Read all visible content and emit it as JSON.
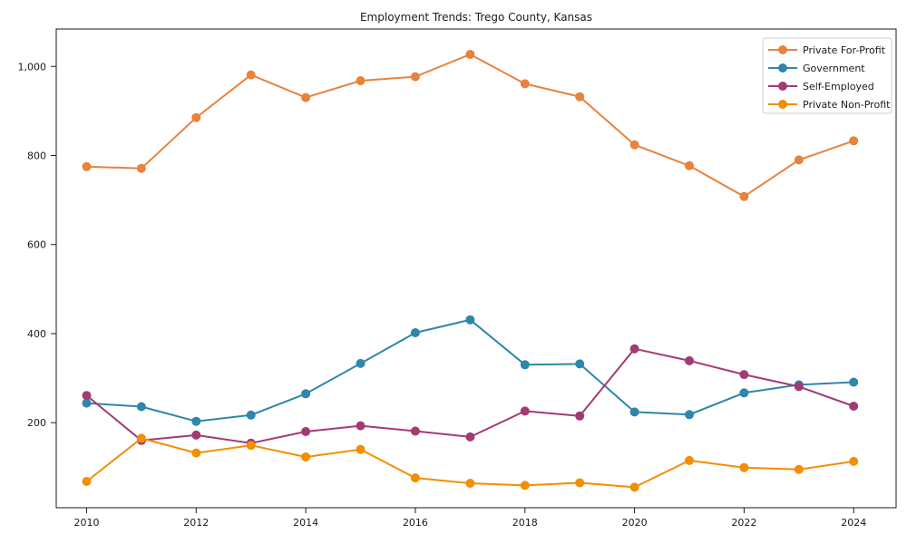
{
  "figure": {
    "background": "#ffffff"
  },
  "chart_data": {
    "type": "line",
    "title": "Employment Trends: Trego County, Kansas",
    "x": [
      2010,
      2011,
      2012,
      2013,
      2014,
      2015,
      2016,
      2017,
      2018,
      2019,
      2020,
      2021,
      2022,
      2023,
      2024
    ],
    "series": [
      {
        "name": "Private For-Profit",
        "color": "#E8823C",
        "values": [
          775,
          771,
          885,
          981,
          930,
          968,
          977,
          1027,
          961,
          932,
          824,
          777,
          708,
          790,
          833
        ]
      },
      {
        "name": "Government",
        "color": "#2E86AB",
        "values": [
          244,
          236,
          203,
          217,
          265,
          333,
          402,
          431,
          330,
          332,
          224,
          218,
          267,
          285,
          291
        ]
      },
      {
        "name": "Self-Employed",
        "color": "#A23B72",
        "values": [
          261,
          160,
          172,
          154,
          180,
          193,
          181,
          168,
          226,
          215,
          366,
          339,
          308,
          281,
          237
        ]
      },
      {
        "name": "Private Non-Profit",
        "color": "#F18F01",
        "values": [
          68,
          165,
          132,
          149,
          123,
          140,
          76,
          64,
          59,
          65,
          55,
          115,
          99,
          95,
          113
        ]
      }
    ],
    "xlabel": "",
    "ylabel": "",
    "x_ticks": [
      2010,
      2012,
      2014,
      2016,
      2018,
      2020,
      2022,
      2024
    ],
    "x_tick_labels": [
      "2010",
      "2012",
      "2014",
      "2016",
      "2018",
      "2020",
      "2022",
      "2024"
    ],
    "y_ticks": [
      200,
      400,
      600,
      800,
      1000
    ],
    "y_tick_labels": [
      "200",
      "400",
      "600",
      "800",
      "1,000"
    ],
    "xlim": [
      2009.446,
      2024.774
    ],
    "ylim": [
      9,
      1084
    ],
    "grid": false,
    "legend_position": "upper right",
    "axis_color": "#1a1a1a",
    "legend_border_color": "#cccccc"
  }
}
